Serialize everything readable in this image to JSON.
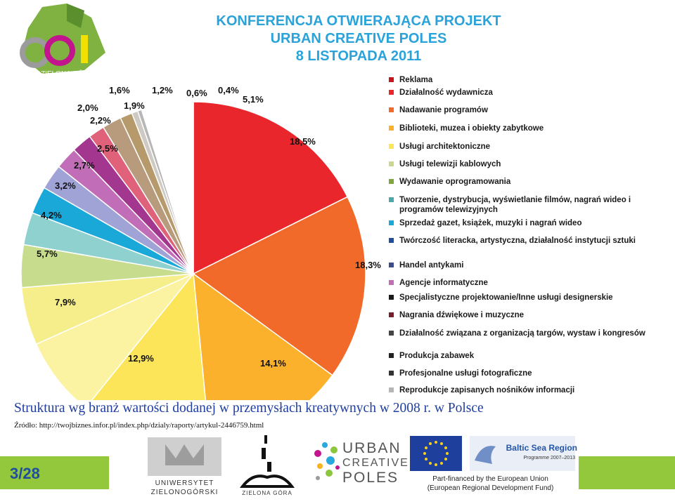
{
  "header": {
    "title_lines": [
      "KONFERENCJA OTWIERAJĄCA PROJEKT",
      "URBAN CREATIVE POLES",
      "8 LISTOPADA 2011"
    ],
    "logo_text": "ZIELONA GÓRA"
  },
  "chart_data": {
    "type": "pie",
    "title": "",
    "start_angle_deg": 0,
    "direction": "clockwise",
    "series": [
      {
        "values": [
          18.5,
          18.3,
          14.1,
          12.9,
          7.9,
          5.7,
          4.2,
          3.2,
          2.7,
          2.5,
          2.2,
          2.0,
          1.6,
          1.9,
          1.2,
          0.6,
          0.4,
          5.1
        ]
      }
    ],
    "slice_labels": [
      "18,5%",
      "18,3%",
      "14,1%",
      "12,9%",
      "7,9%",
      "5,7%",
      "4,2%",
      "3,2%",
      "2,7%",
      "2,5%",
      "2,2%",
      "2,0%",
      "1,6%",
      "1,9%",
      "1,2%",
      "0,6%",
      "0,4%",
      "5,1%"
    ],
    "colors": [
      "#e8262b",
      "#f26a2a",
      "#fbb12b",
      "#fde55a",
      "#fbf3a1",
      "#f5ee8b",
      "#c7dc8c",
      "#8fd1cf",
      "#1aa8d9",
      "#9fa3d6",
      "#c26db7",
      "#a3378f",
      "#e0627a",
      "#b89a7d",
      "#b79a6c",
      "#cfc9c3",
      "#b6b6b6",
      "#ffffff"
    ],
    "legend": {
      "placement": "right",
      "entries": [
        "Reklama",
        "Działalność wydawnicza",
        "Nadawanie programów",
        "Biblioteki, muzea i obiekty zabytkowe",
        "Usługi architektoniczne",
        "Usługi telewizji kablowych",
        "Wydawanie oprogramowania",
        "Tworzenie, dystrybucja, wyświetlanie filmów, nagrań wideo i programów telewizyjnych",
        "Sprzedaż gazet, książek, muzyki i nagrań wideo",
        "Twórczość literacka, artystyczna, działalność instytucji sztuki",
        "Handel antykami",
        "Agencje informatyczne",
        "Specjalistyczne projektowanie/Inne usługi designerskie",
        "Nagrania dźwiękowe i muzyczne",
        "Działalność związana z organizacją targów, wystaw i kongresów",
        "Produkcja zabawek",
        "Profesjonalne usługi fotograficzne",
        "Reprodukcje zapisanych nośników informacji"
      ],
      "colors": [
        "#c8141c",
        "#e8262b",
        "#f26a2a",
        "#fbb12b",
        "#fde55a",
        "#c9d890",
        "#7ea63c",
        "#4aa8a8",
        "#1aa8d9",
        "#1f4f9a",
        "#3c4b8a",
        "#c26db7",
        "#1a1a1a",
        "#7a1d2a",
        "#444444",
        "#222222",
        "#333333",
        "#b6b6b6"
      ]
    }
  },
  "caption": "Struktura wg branż wartości dodanej w przemysłach kreatywnych w 2008 r. w Polsce",
  "source": "Źródło: http://twojbiznes.infor.pl/index.php/dzialy/raporty/artykul-2446759.html",
  "page": "3/28",
  "footer": {
    "university": [
      "UNIWERSYTET",
      "ZIELONOGÓRSKI"
    ],
    "city": "ZIELONA GÓRA",
    "ucp": [
      "URBAN",
      "CREATIVE",
      "POLES"
    ],
    "baltic": [
      "Baltic Sea Region",
      "Programme 2007–2013"
    ],
    "eu": [
      "Part-financed by the European Union",
      "(European Regional Development Fund)"
    ]
  },
  "colors": {
    "title": "#29a3d9",
    "caption": "#1f3ea0",
    "accent_green": "#93c83d"
  }
}
